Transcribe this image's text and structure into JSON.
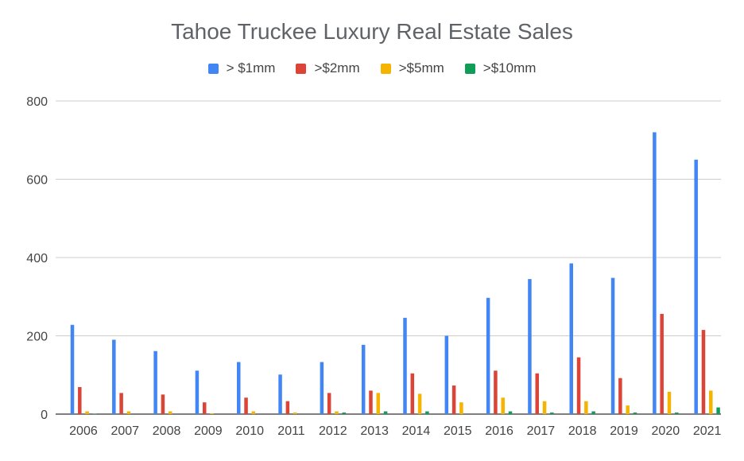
{
  "chart_data": {
    "type": "bar",
    "title": "Tahoe Truckee Luxury Real Estate Sales",
    "xlabel": "",
    "ylabel": "",
    "ylim": [
      0,
      800
    ],
    "yticks": [
      "0",
      "200",
      "400",
      "600",
      "800"
    ],
    "grid": true,
    "legend_position": "top",
    "categories": [
      "2006",
      "2007",
      "2008",
      "2009",
      "2010",
      "2011",
      "2012",
      "2013",
      "2014",
      "2015",
      "2016",
      "2017",
      "2018",
      "2019",
      "2020",
      "2021"
    ],
    "series": [
      {
        "name": "> $1mm",
        "color": "#4285f4",
        "values": [
          228,
          190,
          161,
          111,
          133,
          101,
          133,
          177,
          246,
          200,
          297,
          345,
          385,
          348,
          720,
          650
        ]
      },
      {
        "name": ">$2mm",
        "color": "#db4437",
        "values": [
          69,
          54,
          50,
          30,
          42,
          33,
          54,
          60,
          104,
          73,
          111,
          104,
          145,
          92,
          256,
          215
        ]
      },
      {
        "name": ">$5mm",
        "color": "#f4b400",
        "values": [
          7,
          7,
          7,
          2,
          7,
          4,
          7,
          54,
          52,
          30,
          42,
          33,
          33,
          22,
          57,
          60
        ]
      },
      {
        "name": ">$10mm",
        "color": "#0f9d58",
        "values": [
          1,
          0,
          0,
          0,
          0,
          0,
          4,
          7,
          7,
          0,
          7,
          4,
          7,
          4,
          4,
          17
        ]
      }
    ]
  }
}
